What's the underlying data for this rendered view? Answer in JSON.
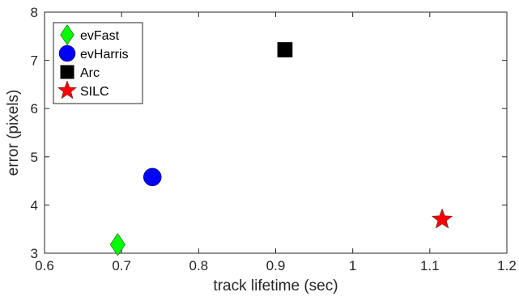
{
  "chart_data": {
    "type": "scatter",
    "xlabel": "track lifetime (sec)",
    "ylabel": "error (pixels)",
    "xlim": [
      0.6,
      1.2
    ],
    "ylim": [
      3,
      8
    ],
    "xticks": [
      0.6,
      0.7,
      0.8,
      0.9,
      1,
      1.1,
      1.2
    ],
    "xtick_labels": [
      "0.6",
      "0.7",
      "0.8",
      "0.9",
      "1",
      "1.1",
      "1.2"
    ],
    "yticks": [
      3,
      4,
      5,
      6,
      7,
      8
    ],
    "ytick_labels": [
      "3",
      "4",
      "5",
      "6",
      "7",
      "8"
    ],
    "grid": false,
    "legend_position": "top-left",
    "series": [
      {
        "name": "evFast",
        "marker": "diamond",
        "color": "#00ff00",
        "points": [
          {
            "x": 0.695,
            "y": 3.18
          }
        ]
      },
      {
        "name": "evHarris",
        "marker": "circle",
        "color": "#0000ff",
        "points": [
          {
            "x": 0.74,
            "y": 4.58
          }
        ]
      },
      {
        "name": "Arc",
        "marker": "square",
        "color": "#000000",
        "points": [
          {
            "x": 0.912,
            "y": 7.22
          }
        ]
      },
      {
        "name": "SILC",
        "marker": "star",
        "color": "#ff0000",
        "points": [
          {
            "x": 1.116,
            "y": 3.7
          }
        ]
      }
    ]
  }
}
